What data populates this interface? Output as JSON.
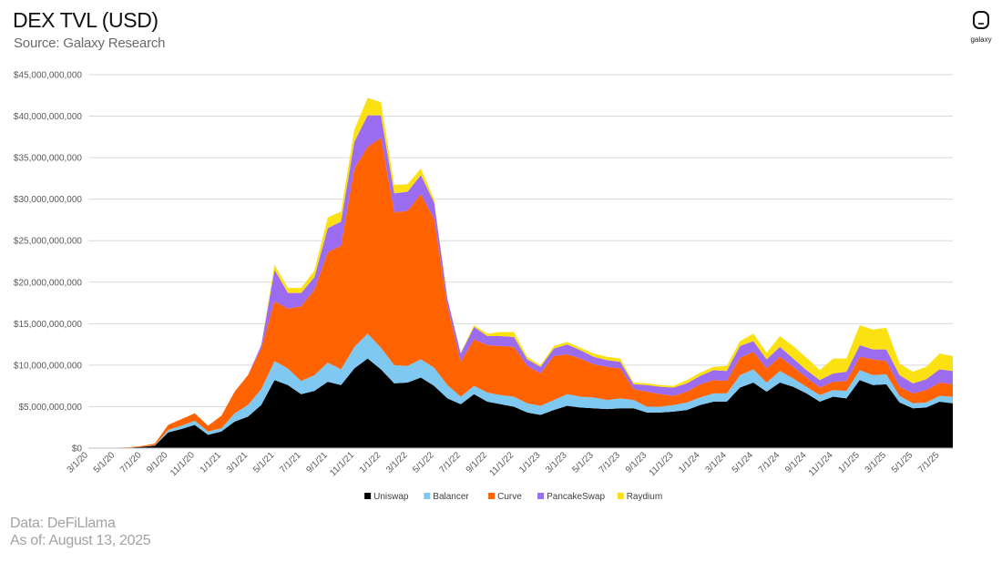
{
  "header": {
    "title": "DEX TVL (USD)",
    "subtitle": "Source: Galaxy Research",
    "logo_text": "galaxy"
  },
  "footer": {
    "data_source": "Data: DeFiLlama",
    "as_of": "As of: August 13, 2025"
  },
  "colors": {
    "Uniswap": "#000000",
    "Balancer": "#7ec8f2",
    "Curve": "#ff6200",
    "PancakeSwap": "#9b6cf0",
    "Raydium": "#fbe112",
    "grid": "#d9d9d9",
    "tick": "#595959"
  },
  "chart_data": {
    "type": "area",
    "stacked": true,
    "title": "DEX TVL (USD)",
    "xlabel": "",
    "ylabel": "",
    "ylim": [
      0,
      45000000000
    ],
    "y_ticks": [
      0,
      5000000000,
      10000000000,
      15000000000,
      20000000000,
      25000000000,
      30000000000,
      35000000000,
      40000000000,
      45000000000
    ],
    "y_tick_labels": [
      "$0",
      "$5,000,000,000",
      "$10,000,000,000",
      "$15,000,000,000",
      "$20,000,000,000",
      "$25,000,000,000",
      "$30,000,000,000",
      "$35,000,000,000",
      "$40,000,000,000",
      "$45,000,000,000"
    ],
    "grid": true,
    "legend_position": "bottom",
    "x": [
      "3/1/20",
      "4/1/20",
      "5/1/20",
      "6/1/20",
      "7/1/20",
      "8/1/20",
      "9/1/20",
      "10/1/20",
      "11/1/20",
      "12/1/20",
      "1/1/21",
      "2/1/21",
      "3/1/21",
      "4/1/21",
      "5/1/21",
      "6/1/21",
      "7/1/21",
      "8/1/21",
      "9/1/21",
      "10/1/21",
      "11/1/21",
      "12/1/21",
      "1/1/22",
      "2/1/22",
      "3/1/22",
      "4/1/22",
      "5/1/22",
      "6/1/22",
      "7/1/22",
      "8/1/22",
      "9/1/22",
      "10/1/22",
      "11/1/22",
      "12/1/22",
      "1/1/23",
      "2/1/23",
      "3/1/23",
      "4/1/23",
      "5/1/23",
      "6/1/23",
      "7/1/23",
      "8/1/23",
      "9/1/23",
      "10/1/23",
      "11/1/23",
      "12/1/23",
      "1/1/24",
      "2/1/24",
      "3/1/24",
      "4/1/24",
      "5/1/24",
      "6/1/24",
      "7/1/24",
      "8/1/24",
      "9/1/24",
      "10/1/24",
      "11/1/24",
      "12/1/24",
      "1/1/25",
      "2/1/25",
      "3/1/25",
      "4/1/25",
      "5/1/25",
      "6/1/25",
      "7/1/25",
      "8/1/25"
    ],
    "x_tick_labels": [
      "3/1/20",
      "5/1/20",
      "7/1/20",
      "9/1/20",
      "11/1/20",
      "1/1/21",
      "3/1/21",
      "5/1/21",
      "7/1/21",
      "9/1/21",
      "11/1/21",
      "1/1/22",
      "3/1/22",
      "5/1/22",
      "7/1/22",
      "9/1/22",
      "11/1/22",
      "1/1/23",
      "3/1/23",
      "5/1/23",
      "7/1/23",
      "9/1/23",
      "11/1/23",
      "1/1/24",
      "3/1/24",
      "5/1/24",
      "7/1/24",
      "9/1/24",
      "11/1/24",
      "1/1/25",
      "3/1/25",
      "5/1/25",
      "7/1/25"
    ],
    "series": [
      {
        "name": "Uniswap",
        "values": [
          0.01,
          0.02,
          0.03,
          0.05,
          0.15,
          0.3,
          1.9,
          2.3,
          2.8,
          1.6,
          2.0,
          3.2,
          3.8,
          5.2,
          8.2,
          7.6,
          6.5,
          6.9,
          8.0,
          7.6,
          9.6,
          10.8,
          9.5,
          7.8,
          7.9,
          8.5,
          7.5,
          6.0,
          5.3,
          6.5,
          5.6,
          5.3,
          5.0,
          4.3,
          4.0,
          4.6,
          5.1,
          4.9,
          4.8,
          4.7,
          4.8,
          4.8,
          4.3,
          4.3,
          4.4,
          4.6,
          5.2,
          5.6,
          5.6,
          7.3,
          7.9,
          6.8,
          7.9,
          7.4,
          6.6,
          5.6,
          6.2,
          6.0,
          8.2,
          7.6,
          7.7,
          5.5,
          4.8,
          4.9,
          5.6,
          5.4
        ]
      },
      {
        "name": "Balancer",
        "values": [
          0,
          0,
          0,
          0,
          0,
          0.05,
          0.3,
          0.4,
          0.5,
          0.4,
          0.4,
          1.0,
          1.4,
          1.9,
          2.3,
          2.0,
          1.6,
          1.9,
          2.3,
          1.9,
          2.6,
          3.0,
          2.6,
          2.2,
          2.0,
          2.2,
          2.2,
          1.6,
          0.9,
          1.0,
          1.1,
          1.1,
          1.2,
          1.1,
          1.1,
          1.2,
          1.4,
          1.3,
          1.3,
          1.1,
          1.2,
          1.0,
          0.7,
          0.7,
          0.8,
          0.9,
          0.9,
          1.0,
          1.0,
          1.5,
          1.6,
          1.1,
          1.4,
          1.0,
          0.8,
          0.8,
          0.8,
          0.9,
          1.2,
          1.2,
          1.2,
          0.8,
          0.6,
          0.6,
          0.7,
          0.8
        ]
      },
      {
        "name": "Curve",
        "values": [
          0,
          0.01,
          0.02,
          0.05,
          0.1,
          0.2,
          0.6,
          0.8,
          0.9,
          0.7,
          1.5,
          2.6,
          3.6,
          4.9,
          7.2,
          7.2,
          9.0,
          10.3,
          13.3,
          14.9,
          21.5,
          22.5,
          25.3,
          18.4,
          18.7,
          19.9,
          17.9,
          9.5,
          4.2,
          5.6,
          5.7,
          5.9,
          6.0,
          4.5,
          3.9,
          5.3,
          4.8,
          4.6,
          4.0,
          4.0,
          3.6,
          1.3,
          1.8,
          1.5,
          1.1,
          1.3,
          1.6,
          1.6,
          1.5,
          2.1,
          2.1,
          1.7,
          1.7,
          1.4,
          1.1,
          0.9,
          1.0,
          1.2,
          1.6,
          1.9,
          1.6,
          1.1,
          1.2,
          1.5,
          1.6,
          1.5
        ]
      },
      {
        "name": "PancakeSwap",
        "values": [
          0,
          0,
          0,
          0,
          0,
          0,
          0,
          0,
          0,
          0,
          0,
          0,
          0,
          0.4,
          3.8,
          1.9,
          1.6,
          1.5,
          2.9,
          2.9,
          3.2,
          3.8,
          2.7,
          2.3,
          2.3,
          2.3,
          2.0,
          0.9,
          1.0,
          1.5,
          1.1,
          1.2,
          1.2,
          0.8,
          0.8,
          0.9,
          1.2,
          1.0,
          0.9,
          0.8,
          0.8,
          0.6,
          0.8,
          0.9,
          1.0,
          1.0,
          1.0,
          1.2,
          1.2,
          1.4,
          1.3,
          1.1,
          1.2,
          1.0,
          0.9,
          0.9,
          1.0,
          1.1,
          1.4,
          1.2,
          1.4,
          1.4,
          1.2,
          1.3,
          1.6,
          1.6
        ]
      },
      {
        "name": "Raydium",
        "values": [
          0,
          0,
          0,
          0,
          0,
          0,
          0,
          0,
          0,
          0,
          0,
          0,
          0,
          0,
          0.6,
          0.6,
          0.6,
          0.8,
          1.3,
          1.2,
          1.5,
          2.1,
          1.6,
          1.0,
          0.9,
          0.8,
          0.4,
          0.1,
          0.1,
          0.2,
          0.3,
          0.5,
          0.6,
          0.3,
          0.2,
          0.3,
          0.3,
          0.3,
          0.4,
          0.4,
          0.4,
          0.2,
          0.2,
          0.2,
          0.2,
          0.4,
          0.4,
          0.4,
          0.6,
          0.6,
          0.9,
          0.8,
          1.3,
          1.5,
          1.5,
          1.2,
          1.8,
          1.6,
          2.4,
          2.4,
          2.6,
          1.4,
          1.4,
          1.5,
          1.9,
          1.8
        ]
      }
    ],
    "units": "billions USD (series values)"
  }
}
